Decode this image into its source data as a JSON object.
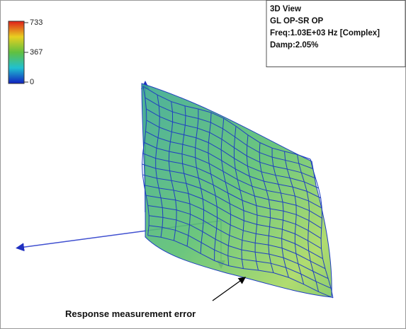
{
  "colorbar": {
    "labels": [
      "733",
      "367",
      "0"
    ]
  },
  "info_box": {
    "lines": [
      "3D View",
      "GL OP-SR OP",
      "Freq:1.03E+03 Hz [Complex]",
      "Damp:2.05%"
    ]
  },
  "annotation": "Response measurement error"
}
